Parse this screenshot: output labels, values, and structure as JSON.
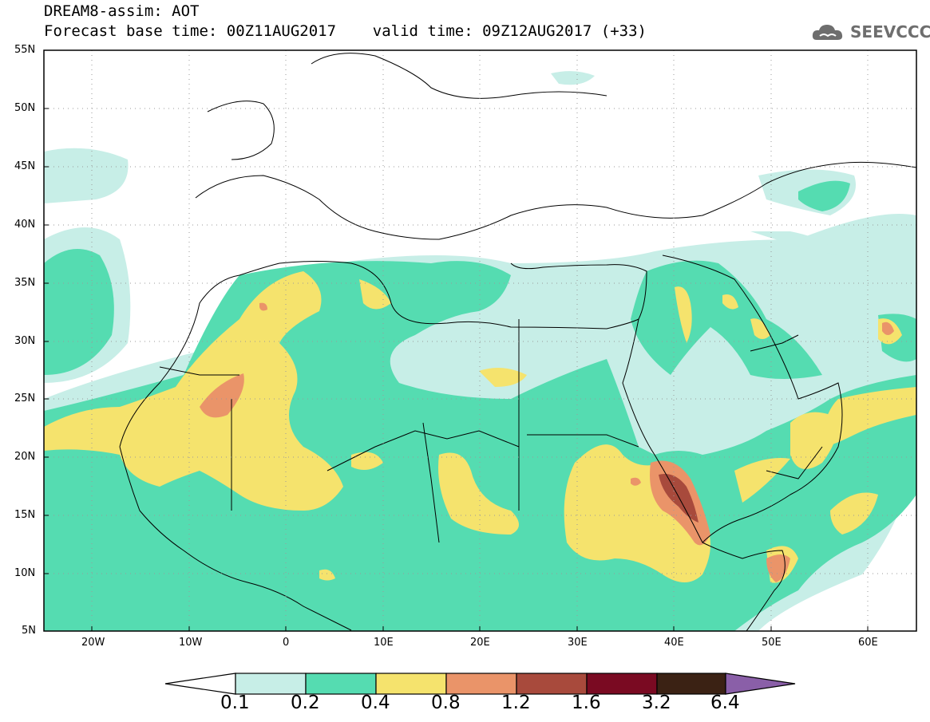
{
  "title": {
    "line1": "DREAM8-assim: AOT",
    "line2": "Forecast base time: 00Z11AUG2017    valid time: 09Z12AUG2017 (+33)"
  },
  "logo": {
    "text": "SEEVCCC",
    "icon": "cloud-icon"
  },
  "map": {
    "lat_labels": [
      "55N",
      "50N",
      "45N",
      "40N",
      "35N",
      "30N",
      "25N",
      "20N",
      "15N",
      "10N",
      "5N"
    ],
    "lon_labels": [
      "20W",
      "10W",
      "0",
      "10E",
      "20E",
      "30E",
      "40E",
      "50E",
      "60E"
    ],
    "extent": {
      "lon": [
        -25,
        65
      ],
      "lat": [
        5,
        55
      ]
    },
    "field": "Aerosol optical thickness (dust)",
    "grid": "dotted"
  },
  "colorbar": {
    "levels": [
      "0.1",
      "0.2",
      "0.4",
      "0.8",
      "1.2",
      "1.6",
      "3.2",
      "6.4"
    ],
    "colors": [
      "#ffffff",
      "#c7eee7",
      "#55dcb1",
      "#f5e36d",
      "#ea9469",
      "#a84a3c",
      "#7a0a22",
      "#3b2214",
      "#8a5fa8"
    ]
  },
  "colors": {
    "c01": "#c7eee7",
    "c02": "#55dcb1",
    "c04": "#f5e36d",
    "c08": "#ea9469",
    "c12": "#a84a3c",
    "c16": "#7a0a22",
    "c32": "#3b2214",
    "c64": "#8a5fa8"
  }
}
